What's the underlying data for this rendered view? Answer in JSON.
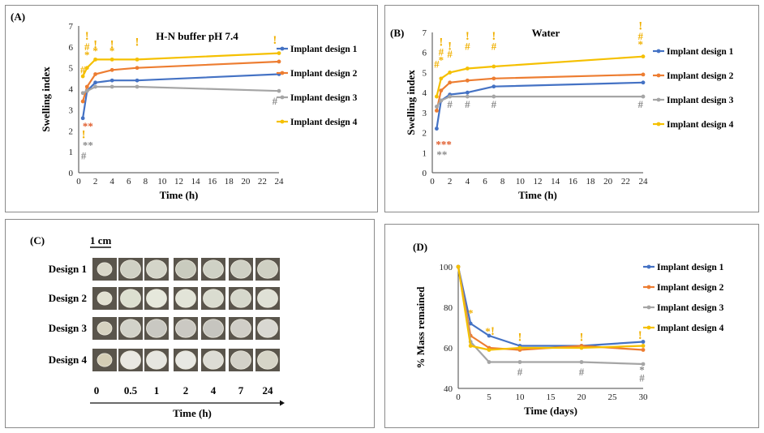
{
  "panels": {
    "a": {
      "label": "(A)"
    },
    "b": {
      "label": "(B)"
    },
    "c": {
      "label": "(C)",
      "scale_bar": "1 cm",
      "xlabel": "Time (h)",
      "rows": [
        "Design 1",
        "Design 2",
        "Design 3",
        "Design 4"
      ],
      "times": [
        "0",
        "0.5",
        "1",
        "2",
        "4",
        "7",
        "24"
      ]
    },
    "d": {
      "label": "(D)"
    }
  },
  "colors": {
    "design1": "#4472c4",
    "design2": "#ed7d31",
    "design3": "#a5a5a5",
    "design4": "#f5c000",
    "marker_red": "#e05a2a",
    "marker_gray": "#8a8a8a",
    "marker_yellow": "#f0b000"
  },
  "chart_data": [
    {
      "type": "line",
      "title": "H-N buffer pH 7.4",
      "xlabel": "Time (h)",
      "ylabel": "Swelling index",
      "xlim": [
        0,
        24
      ],
      "ylim": [
        0,
        7
      ],
      "xticks": [
        "0",
        "2",
        "4",
        "6",
        "8",
        "10",
        "12",
        "14",
        "16",
        "18",
        "20",
        "22",
        "24"
      ],
      "yticks": [
        "0",
        "1",
        "2",
        "3",
        "4",
        "5",
        "6",
        "7"
      ],
      "x": [
        0.5,
        1,
        2,
        4,
        7,
        24
      ],
      "series": [
        {
          "name": "Implant design 1",
          "values": [
            2.6,
            3.9,
            4.3,
            4.4,
            4.4,
            4.7
          ]
        },
        {
          "name": "Implant design 2",
          "values": [
            3.4,
            4.1,
            4.7,
            4.9,
            5.0,
            5.3
          ]
        },
        {
          "name": "Implant design 3",
          "values": [
            3.8,
            3.9,
            4.1,
            4.1,
            4.1,
            3.9
          ]
        },
        {
          "name": "Implant design 4",
          "values": [
            4.6,
            5.0,
            5.4,
            5.4,
            5.4,
            5.7
          ]
        }
      ],
      "annotations": [
        {
          "text": "#",
          "x": 0.5,
          "y": 4.9,
          "color": "marker_yellow"
        },
        {
          "text": "!",
          "x": 1,
          "y": 6.5,
          "color": "marker_yellow"
        },
        {
          "text": "#",
          "x": 1,
          "y": 6.0,
          "color": "marker_yellow"
        },
        {
          "text": "*",
          "x": 1,
          "y": 5.6,
          "color": "marker_yellow"
        },
        {
          "text": "!",
          "x": 2,
          "y": 6.1,
          "color": "marker_yellow"
        },
        {
          "text": "*",
          "x": 2,
          "y": 5.8,
          "color": "marker_yellow"
        },
        {
          "text": "!",
          "x": 4,
          "y": 6.1,
          "color": "marker_yellow"
        },
        {
          "text": "*",
          "x": 4,
          "y": 5.8,
          "color": "marker_yellow"
        },
        {
          "text": "!",
          "x": 7,
          "y": 6.2,
          "color": "marker_yellow"
        },
        {
          "text": "!",
          "x": 23.5,
          "y": 6.3,
          "color": "marker_yellow"
        },
        {
          "text": "#",
          "x": 23.5,
          "y": 3.4,
          "color": "marker_gray"
        },
        {
          "text": "**",
          "x": 1.1,
          "y": 2.2,
          "color": "marker_red"
        },
        {
          "text": "!",
          "x": 0.6,
          "y": 1.8,
          "color": "marker_yellow"
        },
        {
          "text": "**",
          "x": 1.1,
          "y": 1.3,
          "color": "marker_gray"
        },
        {
          "text": "#",
          "x": 0.6,
          "y": 0.8,
          "color": "marker_gray"
        }
      ]
    },
    {
      "type": "line",
      "title": "Water",
      "xlabel": "Time (h)",
      "ylabel": "Swelling index",
      "xlim": [
        0,
        24
      ],
      "ylim": [
        0,
        7
      ],
      "xticks": [
        "0",
        "2",
        "4",
        "6",
        "8",
        "10",
        "12",
        "14",
        "16",
        "18",
        "20",
        "22",
        "24"
      ],
      "yticks": [
        "0",
        "1",
        "2",
        "3",
        "4",
        "5",
        "6",
        "7"
      ],
      "x": [
        0.5,
        1,
        2,
        4,
        7,
        24
      ],
      "series": [
        {
          "name": "Implant design 1",
          "values": [
            2.2,
            3.6,
            3.9,
            4.0,
            4.3,
            4.5
          ]
        },
        {
          "name": "Implant design 2",
          "values": [
            3.1,
            4.1,
            4.5,
            4.6,
            4.7,
            4.9
          ]
        },
        {
          "name": "Implant design 3",
          "values": [
            3.3,
            3.6,
            3.8,
            3.8,
            3.8,
            3.8
          ]
        },
        {
          "name": "Implant design 4",
          "values": [
            3.8,
            4.7,
            5.0,
            5.2,
            5.3,
            5.8
          ]
        }
      ],
      "annotations": [
        {
          "text": "#",
          "x": 0.5,
          "y": 5.4,
          "color": "marker_yellow"
        },
        {
          "text": "!",
          "x": 1,
          "y": 6.5,
          "color": "marker_yellow"
        },
        {
          "text": "#",
          "x": 1,
          "y": 6.0,
          "color": "marker_yellow"
        },
        {
          "text": "*",
          "x": 1,
          "y": 5.6,
          "color": "marker_yellow"
        },
        {
          "text": "!",
          "x": 2,
          "y": 6.3,
          "color": "marker_yellow"
        },
        {
          "text": "#",
          "x": 2,
          "y": 5.9,
          "color": "marker_yellow"
        },
        {
          "text": "!",
          "x": 4,
          "y": 6.8,
          "color": "marker_yellow"
        },
        {
          "text": "#",
          "x": 4,
          "y": 6.3,
          "color": "marker_yellow"
        },
        {
          "text": "!",
          "x": 7,
          "y": 6.8,
          "color": "marker_yellow"
        },
        {
          "text": "#",
          "x": 7,
          "y": 6.3,
          "color": "marker_yellow"
        },
        {
          "text": "!",
          "x": 23.7,
          "y": 7.3,
          "color": "marker_yellow"
        },
        {
          "text": "#",
          "x": 23.7,
          "y": 6.8,
          "color": "marker_yellow"
        },
        {
          "text": "*",
          "x": 23.7,
          "y": 6.4,
          "color": "marker_yellow"
        },
        {
          "text": "#",
          "x": 2,
          "y": 3.4,
          "color": "marker_gray"
        },
        {
          "text": "#",
          "x": 4,
          "y": 3.4,
          "color": "marker_gray"
        },
        {
          "text": "#",
          "x": 7,
          "y": 3.4,
          "color": "marker_gray"
        },
        {
          "text": "#",
          "x": 23.7,
          "y": 3.4,
          "color": "marker_gray"
        },
        {
          "text": "***",
          "x": 1.3,
          "y": 1.4,
          "color": "marker_red"
        },
        {
          "text": "**",
          "x": 1.1,
          "y": 0.9,
          "color": "marker_gray"
        }
      ]
    },
    {
      "type": "line",
      "title": "",
      "xlabel": "Time (days)",
      "ylabel": "% Mass remained",
      "xlim": [
        0,
        30
      ],
      "ylim": [
        40,
        100
      ],
      "xticks": [
        "0",
        "5",
        "10",
        "15",
        "20",
        "25",
        "30"
      ],
      "yticks": [
        "40",
        "60",
        "80",
        "100"
      ],
      "x": [
        0,
        2,
        5,
        10,
        20,
        30
      ],
      "series": [
        {
          "name": "Implant design 1",
          "values": [
            100,
            72,
            66,
            61,
            61,
            63
          ]
        },
        {
          "name": "Implant design 2",
          "values": [
            100,
            66,
            60,
            59,
            61,
            59
          ]
        },
        {
          "name": "Implant design 3",
          "values": [
            100,
            63,
            53,
            53,
            53,
            52
          ]
        },
        {
          "name": "Implant design 4",
          "values": [
            100,
            61,
            59,
            60,
            60,
            61
          ]
        }
      ],
      "annotations": [
        {
          "text": "*",
          "x": 2,
          "y": 77,
          "color": "marker_yellow"
        },
        {
          "text": "*",
          "x": 4.8,
          "y": 68,
          "color": "marker_yellow"
        },
        {
          "text": "!",
          "x": 5.6,
          "y": 68,
          "color": "marker_yellow"
        },
        {
          "text": "!",
          "x": 10,
          "y": 65,
          "color": "marker_yellow"
        },
        {
          "text": "!",
          "x": 20,
          "y": 65,
          "color": "marker_yellow"
        },
        {
          "text": "!",
          "x": 29.5,
          "y": 66,
          "color": "marker_yellow"
        },
        {
          "text": "#",
          "x": 10,
          "y": 48,
          "color": "marker_gray"
        },
        {
          "text": "#",
          "x": 20,
          "y": 48,
          "color": "marker_gray"
        },
        {
          "text": "*",
          "x": 29.8,
          "y": 49,
          "color": "marker_gray"
        },
        {
          "text": "#",
          "x": 29.8,
          "y": 45,
          "color": "marker_gray"
        }
      ]
    }
  ]
}
